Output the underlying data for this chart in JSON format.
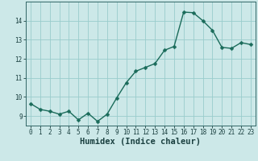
{
  "x": [
    0,
    1,
    2,
    3,
    4,
    5,
    6,
    7,
    8,
    9,
    10,
    11,
    12,
    13,
    14,
    15,
    16,
    17,
    18,
    19,
    20,
    21,
    22,
    23
  ],
  "y": [
    9.65,
    9.35,
    9.25,
    9.1,
    9.25,
    8.8,
    9.15,
    8.72,
    9.1,
    9.95,
    10.75,
    11.35,
    11.55,
    11.75,
    12.45,
    12.65,
    14.45,
    14.42,
    14.0,
    13.5,
    12.6,
    12.55,
    12.85,
    12.75
  ],
  "line_color": "#1a6b5a",
  "marker_color": "#1a6b5a",
  "bg_color": "#cce8e8",
  "grid_color": "#99cccc",
  "xlabel": "Humidex (Indice chaleur)",
  "ylim": [
    8.5,
    15.0
  ],
  "xlim": [
    -0.5,
    23.5
  ],
  "yticks": [
    9,
    10,
    11,
    12,
    13,
    14
  ],
  "xticks": [
    0,
    1,
    2,
    3,
    4,
    5,
    6,
    7,
    8,
    9,
    10,
    11,
    12,
    13,
    14,
    15,
    16,
    17,
    18,
    19,
    20,
    21,
    22,
    23
  ],
  "tick_fontsize": 5.5,
  "xlabel_fontsize": 7.5,
  "marker_size": 2.5,
  "line_width": 1.0,
  "spine_color": "#336666"
}
